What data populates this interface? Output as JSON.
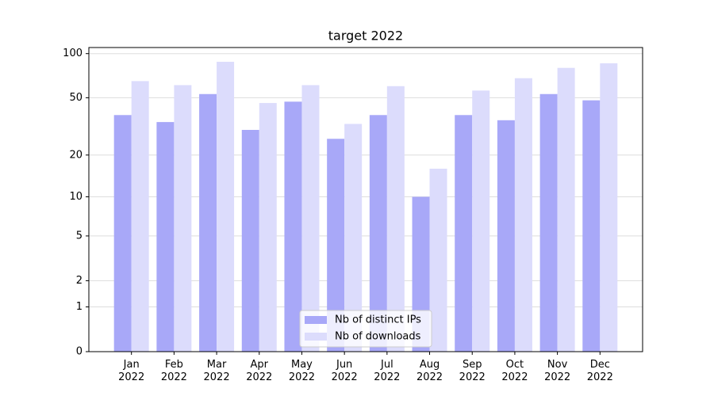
{
  "chart_data": {
    "type": "bar",
    "title": "target 2022",
    "categories": [
      "Jan\n2022",
      "Feb\n2022",
      "Mar\n2022",
      "Apr\n2022",
      "May\n2022",
      "Jun\n2022",
      "Jul\n2022",
      "Aug\n2022",
      "Sep\n2022",
      "Oct\n2022",
      "Nov\n2022",
      "Dec\n2022"
    ],
    "series": [
      {
        "name": "Nb of distinct IPs",
        "color": "#a8a8f8",
        "values": [
          38,
          34,
          53,
          30,
          47,
          26,
          38,
          10,
          38,
          35,
          53,
          48
        ]
      },
      {
        "name": "Nb of downloads",
        "color": "#dcdcfc",
        "values": [
          65,
          61,
          88,
          46,
          61,
          33,
          60,
          16,
          56,
          68,
          80,
          86
        ]
      }
    ],
    "yscale": "log1p",
    "ylim": [
      0,
      110
    ],
    "yticks": [
      0,
      1,
      2,
      5,
      10,
      20,
      50,
      100
    ],
    "grid": true,
    "legend": "lower center"
  }
}
